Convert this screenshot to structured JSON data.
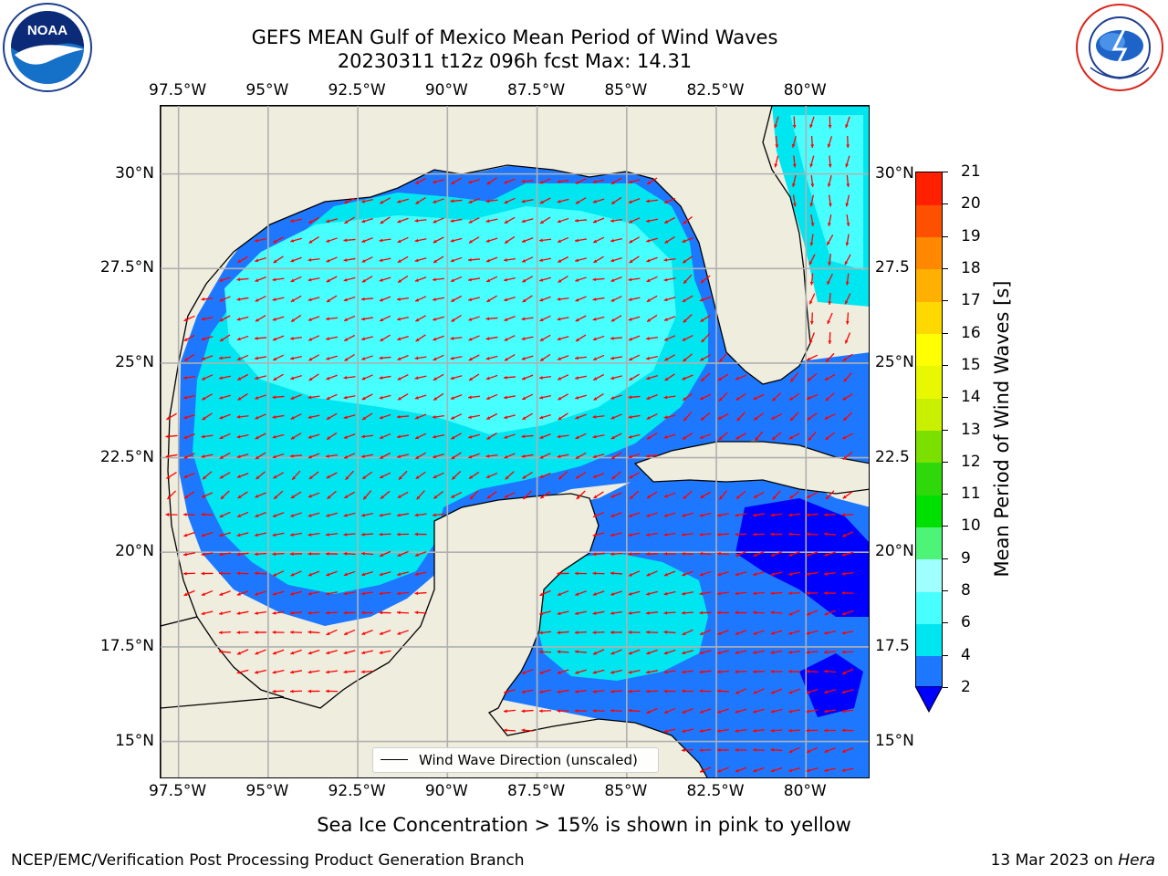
{
  "title": {
    "line1": "GEFS MEAN Gulf of Mexico Mean Period of Wind Waves",
    "line2": "20230311 t12z 096h fcst   Max: 14.31"
  },
  "logos": {
    "left": {
      "icon": "noaa-logo",
      "text": "NOAA",
      "ring_text": "NATIONAL OCEANIC AND ATMOSPHERIC ADMINISTRATION · U.S. DEPARTMENT OF COMMERCE"
    },
    "right": {
      "icon": "nws-logo",
      "ring_text": "NATIONAL WEATHER SERVICE"
    }
  },
  "map": {
    "lon_range": [
      -98.0,
      -78.2
    ],
    "lat_range": [
      14.0,
      31.8
    ],
    "lon_ticks": [
      "97.5°W",
      "95°W",
      "92.5°W",
      "90°W",
      "87.5°W",
      "85°W",
      "82.5°W",
      "80°W"
    ],
    "lon_tick_values": [
      -97.5,
      -95,
      -92.5,
      -90,
      -87.5,
      -85,
      -82.5,
      -80
    ],
    "lat_ticks": [
      "30°N",
      "27.5°N",
      "25°N",
      "22.5°N",
      "20°N",
      "17.5°N",
      "15°N"
    ],
    "lat_tick_values": [
      30,
      27.5,
      25,
      22.5,
      20,
      17.5,
      15
    ],
    "lat_ticks_right": [
      "30°N",
      "27.5",
      "25°N",
      "22.5",
      "20°N",
      "17.5",
      "15°N"
    ],
    "grid": true,
    "land_color": "#efedde",
    "arrow_color": "#ff0000",
    "legend": {
      "label": "Wind Wave Direction (unscaled)",
      "placement": "lower-center"
    }
  },
  "colorbar": {
    "label": "Mean Period of Wind Waves [s]",
    "ticks": [
      "2",
      "4",
      "6",
      "8",
      "9",
      "10",
      "11",
      "12",
      "13",
      "14",
      "15",
      "16",
      "17",
      "18",
      "19",
      "20",
      "21"
    ],
    "levels": [
      2,
      4,
      6,
      8,
      9,
      10,
      11,
      12,
      13,
      14,
      15,
      16,
      17,
      18,
      19,
      20,
      21
    ],
    "colors": [
      "#1e78ff",
      "#00e6f0",
      "#47ffff",
      "#a0ffff",
      "#4ef478",
      "#00e000",
      "#2fd80a",
      "#7be000",
      "#c8f000",
      "#e8f800",
      "#ffff00",
      "#ffd800",
      "#ffb000",
      "#ff8800",
      "#ff5000",
      "#ff2000"
    ],
    "under_color": "#0000ff"
  },
  "footnote": "Sea Ice Concentration > 15% is shown in pink to yellow",
  "credit": "NCEP/EMC/Verification Post Processing Product Generation Branch",
  "run_date": {
    "date": "13 Mar 2023 on ",
    "machine": "Hera"
  }
}
